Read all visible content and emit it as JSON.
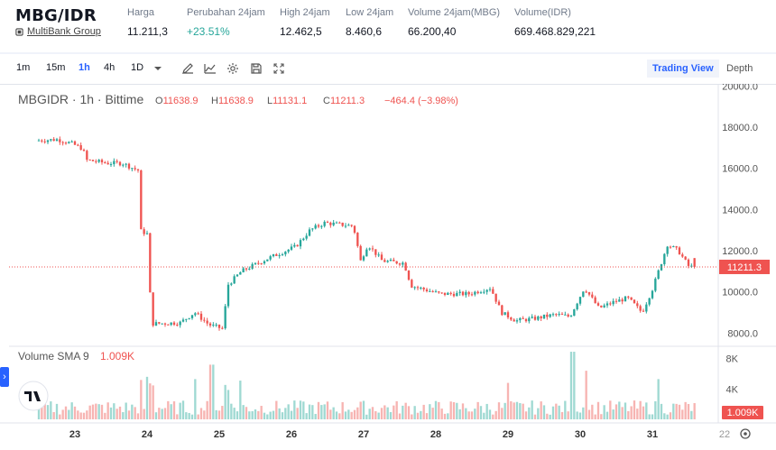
{
  "header": {
    "pair": "MBG/IDR",
    "issuer": "MultiBank Group",
    "stats": [
      {
        "label": "Harga",
        "value": "11.211,3",
        "tone": "normal"
      },
      {
        "label": "Perubahan 24jam",
        "value": "+23.51%",
        "tone": "up"
      },
      {
        "label": "High 24jam",
        "value": "12.462,5",
        "tone": "normal"
      },
      {
        "label": "Low 24jam",
        "value": "8.460,6",
        "tone": "normal"
      },
      {
        "label": "Volume 24jam(MBG)",
        "value": "66.200,40",
        "tone": "normal"
      },
      {
        "label": "Volume(IDR)",
        "value": "669.468.829,221",
        "tone": "normal"
      }
    ]
  },
  "toolbar": {
    "intervals": [
      "1m",
      "15m",
      "1h",
      "4h",
      "1D"
    ],
    "active_interval": "1h",
    "tools": [
      "draw-icon",
      "indicators-icon",
      "settings-icon",
      "save-icon",
      "fullscreen-icon"
    ],
    "views": [
      "Trading View",
      "Depth"
    ],
    "active_view": "Trading View"
  },
  "colors": {
    "up": "#26a69a",
    "down": "#ef5350",
    "up_vol": "#9fd9d2",
    "down_vol": "#f7b4b2",
    "accent": "#2962ff"
  },
  "chart_data": {
    "type": "candlestick",
    "symbol": "MBGIDR",
    "interval": "1h",
    "exchange": "Bittime",
    "legend": {
      "symbol_line": "MBGIDR · 1h · Bittime",
      "O": "11638.9",
      "H": "11638.9",
      "L": "11131.1",
      "C": "11211.3",
      "change": "−464.4 (−3.98%)"
    },
    "last_price": 11211.3,
    "last_price_label": "11211.3",
    "y_ticks": [
      8000,
      10000,
      12000,
      14000,
      16000,
      18000,
      20000
    ],
    "y_tick_labels": [
      "8000.0",
      "10000.0",
      "12000.0",
      "14000.0",
      "16000.0",
      "18000.0",
      "20000.0"
    ],
    "ylim": [
      7400,
      20100
    ],
    "x_ticks": [
      "23",
      "24",
      "25",
      "26",
      "27",
      "28",
      "29",
      "30",
      "31",
      "22"
    ],
    "x_tick_days": [
      23,
      24,
      25,
      26,
      27,
      28,
      29,
      30,
      31,
      32
    ],
    "x_start_day": 22.5,
    "x_end_day": 31.6,
    "anchors": [
      {
        "day": 22.5,
        "price": 17350
      },
      {
        "day": 22.8,
        "price": 17400
      },
      {
        "day": 23.0,
        "price": 17200
      },
      {
        "day": 23.15,
        "price": 16950
      },
      {
        "day": 23.2,
        "price": 16400
      },
      {
        "day": 23.5,
        "price": 16250
      },
      {
        "day": 23.7,
        "price": 16250
      },
      {
        "day": 23.85,
        "price": 16000
      },
      {
        "day": 23.92,
        "price": 15900
      },
      {
        "day": 23.93,
        "price": 13000
      },
      {
        "day": 24.05,
        "price": 12800
      },
      {
        "day": 24.1,
        "price": 8450
      },
      {
        "day": 24.5,
        "price": 8500
      },
      {
        "day": 24.7,
        "price": 9000
      },
      {
        "day": 24.9,
        "price": 8400
      },
      {
        "day": 25.1,
        "price": 8200
      },
      {
        "day": 25.15,
        "price": 10300
      },
      {
        "day": 25.35,
        "price": 11000
      },
      {
        "day": 25.7,
        "price": 11600
      },
      {
        "day": 26.1,
        "price": 12200
      },
      {
        "day": 26.3,
        "price": 13000
      },
      {
        "day": 26.5,
        "price": 13350
      },
      {
        "day": 26.9,
        "price": 13200
      },
      {
        "day": 27.0,
        "price": 11500
      },
      {
        "day": 27.1,
        "price": 12300
      },
      {
        "day": 27.3,
        "price": 11500
      },
      {
        "day": 27.6,
        "price": 11400
      },
      {
        "day": 27.7,
        "price": 10300
      },
      {
        "day": 28.1,
        "price": 9900
      },
      {
        "day": 28.5,
        "price": 9900
      },
      {
        "day": 28.8,
        "price": 10200
      },
      {
        "day": 28.95,
        "price": 9000
      },
      {
        "day": 29.15,
        "price": 8600
      },
      {
        "day": 29.4,
        "price": 8700
      },
      {
        "day": 29.7,
        "price": 8900
      },
      {
        "day": 29.9,
        "price": 8800
      },
      {
        "day": 30.1,
        "price": 10200
      },
      {
        "day": 30.3,
        "price": 9200
      },
      {
        "day": 30.5,
        "price": 9500
      },
      {
        "day": 30.7,
        "price": 9700
      },
      {
        "day": 30.9,
        "price": 9000
      },
      {
        "day": 31.05,
        "price": 10200
      },
      {
        "day": 31.25,
        "price": 12300
      },
      {
        "day": 31.4,
        "price": 12000
      },
      {
        "day": 31.55,
        "price": 11211
      }
    ],
    "volume": {
      "title": "Volume SMA 9",
      "value": "1.009K",
      "y_ticks": [
        4000,
        8000
      ],
      "y_tick_labels": [
        "4K",
        "8K"
      ],
      "ylim": [
        0,
        9500
      ],
      "last_label": "1.009K",
      "spikes": [
        {
          "day": 24.0,
          "value": 5600
        },
        {
          "day": 24.68,
          "value": 5300
        },
        {
          "day": 24.9,
          "value": 7200
        },
        {
          "day": 25.3,
          "value": 5100
        },
        {
          "day": 29.0,
          "value": 4800
        },
        {
          "day": 29.9,
          "value": 8900
        },
        {
          "day": 30.1,
          "value": 6400
        },
        {
          "day": 31.1,
          "value": 5300
        }
      ]
    }
  }
}
